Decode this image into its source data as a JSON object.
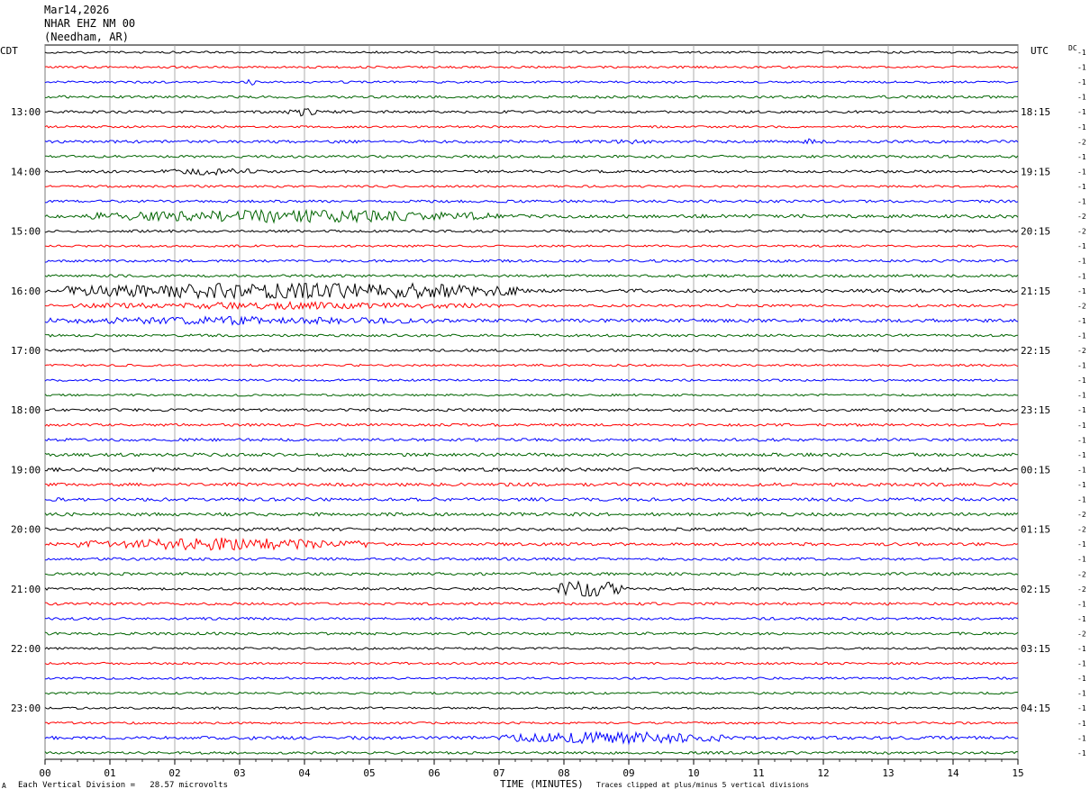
{
  "header": {
    "date": "Mar14,2026",
    "station": "NHAR EHZ NM 00",
    "location": "(Needham, AR)"
  },
  "left_tz": "CDT",
  "right_tz": "UTC",
  "dc_label": "DC",
  "footer": {
    "scale": "Each Vertical Division =   28.57 microvolts",
    "xlabel": "TIME (MINUTES)",
    "clip_note": "Traces clipped at plus/minus 5 vertical divisions",
    "corner_mark": "A"
  },
  "trace_colors": [
    "#000000",
    "#ff0000",
    "#0000ff",
    "#006400"
  ],
  "chart_data": {
    "type": "line",
    "title": "",
    "xlabel": "TIME (MINUTES)",
    "x_ticks": [
      "00",
      "01",
      "02",
      "03",
      "04",
      "05",
      "06",
      "07",
      "08",
      "09",
      "10",
      "11",
      "12",
      "13",
      "14",
      "15"
    ],
    "xlim": [
      0,
      15
    ],
    "grid": true,
    "rows": 48,
    "left_hour_labels": [
      {
        "row": 4,
        "label": "13:00"
      },
      {
        "row": 8,
        "label": "14:00"
      },
      {
        "row": 12,
        "label": "15:00"
      },
      {
        "row": 16,
        "label": "16:00"
      },
      {
        "row": 20,
        "label": "17:00"
      },
      {
        "row": 24,
        "label": "18:00"
      },
      {
        "row": 28,
        "label": "19:00"
      },
      {
        "row": 32,
        "label": "20:00"
      },
      {
        "row": 36,
        "label": "21:00"
      },
      {
        "row": 40,
        "label": "22:00"
      },
      {
        "row": 44,
        "label": "23:00"
      }
    ],
    "right_hour_labels": [
      {
        "row": 4,
        "label": "18:15"
      },
      {
        "row": 8,
        "label": "19:15"
      },
      {
        "row": 12,
        "label": "20:15"
      },
      {
        "row": 16,
        "label": "21:15"
      },
      {
        "row": 20,
        "label": "22:15"
      },
      {
        "row": 24,
        "label": "23:15"
      },
      {
        "row": 28,
        "label": "00:15"
      },
      {
        "row": 32,
        "label": "01:15"
      },
      {
        "row": 36,
        "label": "02:15"
      },
      {
        "row": 40,
        "label": "03:15"
      },
      {
        "row": 44,
        "label": "04:15"
      }
    ],
    "dc_offsets": [
      "-1",
      "-1",
      "-1",
      "-1",
      "-1",
      "-1",
      "-2",
      "-1",
      "-1",
      "-1",
      "-1",
      "-2",
      "-2",
      "-1",
      "-1",
      "-1",
      "-1",
      "-2",
      "-1",
      "-1",
      "-2",
      "-1",
      "-1",
      "-1",
      "-1",
      "-1",
      "-1",
      "-1",
      "-1",
      "-1",
      "-1",
      "-2",
      "-2",
      "-1",
      "-1",
      "-2",
      "-2",
      "-1",
      "-1",
      "-2",
      "-1",
      "-1",
      "-1",
      "-1",
      "-1",
      "-1",
      "-1",
      "-1"
    ],
    "noise_levels": [
      1.0,
      1.0,
      1.0,
      1.2,
      1.2,
      1.0,
      1.3,
      1.2,
      1.2,
      1.0,
      1.2,
      1.6,
      1.2,
      1.0,
      1.2,
      1.2,
      1.5,
      1.2,
      1.6,
      1.2,
      1.2,
      1.0,
      1.0,
      1.0,
      1.3,
      1.2,
      1.3,
      1.5,
      1.6,
      1.5,
      1.5,
      1.5,
      1.4,
      1.4,
      1.2,
      1.3,
      1.2,
      1.2,
      1.2,
      1.2,
      1.0,
      1.0,
      1.0,
      1.0,
      1.0,
      1.0,
      1.5,
      1.2
    ],
    "events": [
      {
        "row": 2,
        "start_min": 3.1,
        "end_min": 3.3,
        "amplitude": 3
      },
      {
        "row": 4,
        "start_min": 3.7,
        "end_min": 4.2,
        "amplitude": 4
      },
      {
        "row": 6,
        "start_min": 8.7,
        "end_min": 9.3,
        "amplitude": 2
      },
      {
        "row": 6,
        "start_min": 11.6,
        "end_min": 12.0,
        "amplitude": 3
      },
      {
        "row": 8,
        "start_min": 1.8,
        "end_min": 3.3,
        "amplitude": 3
      },
      {
        "row": 11,
        "start_min": 0.7,
        "end_min": 7.0,
        "amplitude": 6
      },
      {
        "row": 16,
        "start_min": 0.3,
        "end_min": 7.3,
        "amplitude": 10
      },
      {
        "row": 17,
        "start_min": 0.3,
        "end_min": 7.0,
        "amplitude": 3
      },
      {
        "row": 18,
        "start_min": 0.0,
        "end_min": 6.0,
        "amplitude": 3
      },
      {
        "row": 33,
        "start_min": 0.5,
        "end_min": 5.0,
        "amplitude": 6
      },
      {
        "row": 36,
        "start_min": 7.9,
        "end_min": 8.9,
        "amplitude": 12
      },
      {
        "row": 46,
        "start_min": 7.0,
        "end_min": 10.5,
        "amplitude": 6
      }
    ]
  }
}
